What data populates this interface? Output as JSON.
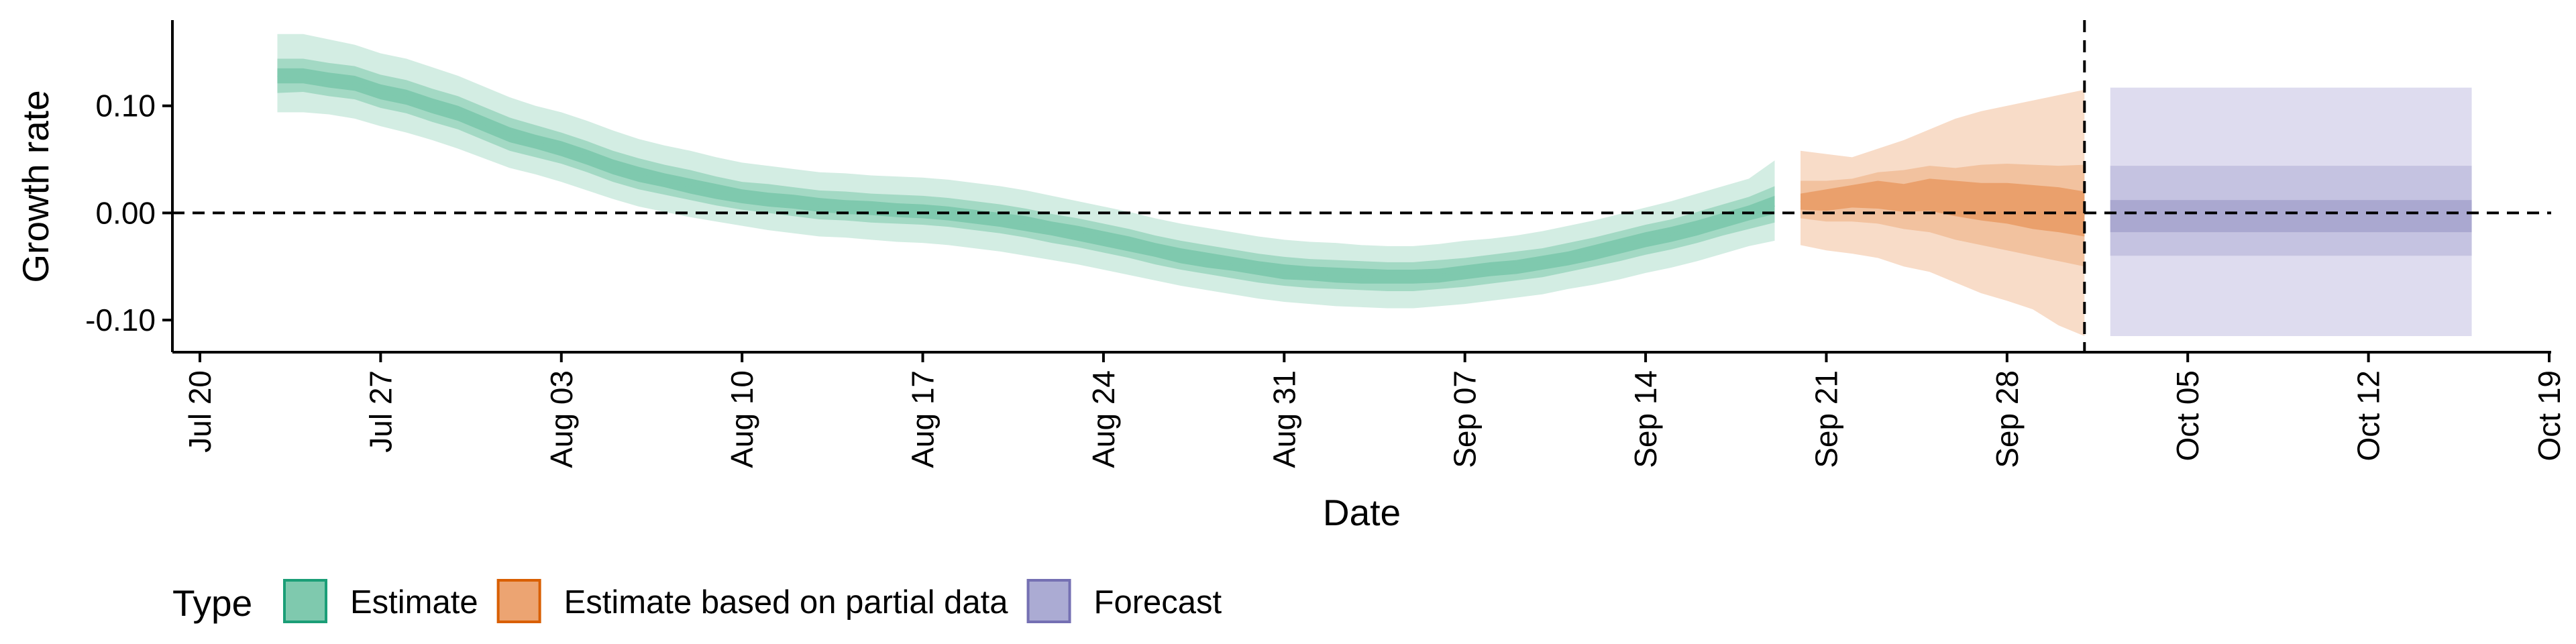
{
  "chart_data": {
    "type": "area",
    "xlabel": "Date",
    "ylabel": "Growth rate",
    "x_axis": {
      "kind": "date",
      "range": [
        "2020-07-20",
        "2020-10-19"
      ],
      "ticks": [
        {
          "date": "2020-07-20",
          "label": "Jul 20"
        },
        {
          "date": "2020-07-27",
          "label": "Jul 27"
        },
        {
          "date": "2020-08-03",
          "label": "Aug 03"
        },
        {
          "date": "2020-08-10",
          "label": "Aug 10"
        },
        {
          "date": "2020-08-17",
          "label": "Aug 17"
        },
        {
          "date": "2020-08-24",
          "label": "Aug 24"
        },
        {
          "date": "2020-08-31",
          "label": "Aug 31"
        },
        {
          "date": "2020-09-07",
          "label": "Sep 07"
        },
        {
          "date": "2020-09-14",
          "label": "Sep 14"
        },
        {
          "date": "2020-09-21",
          "label": "Sep 21"
        },
        {
          "date": "2020-09-28",
          "label": "Sep 28"
        },
        {
          "date": "2020-10-05",
          "label": "Oct 05"
        },
        {
          "date": "2020-10-12",
          "label": "Oct 12"
        },
        {
          "date": "2020-10-19",
          "label": "Oct 19"
        }
      ]
    },
    "y_axis": {
      "range": [
        -0.13,
        0.18
      ],
      "ticks": [
        {
          "value": 0.1,
          "label": "0.10"
        },
        {
          "value": 0.0,
          "label": "0.00"
        },
        {
          "value": -0.1,
          "label": "-0.10"
        }
      ]
    },
    "reference_lines": {
      "horizontal_y": 0,
      "vertical_date": "2020-10-01"
    },
    "grid": false,
    "legend": {
      "title": "Type",
      "position": "bottom-left",
      "items": [
        {
          "key": "estimate",
          "label": "Estimate",
          "fill": "#7fc9ae",
          "border": "#1b9e77"
        },
        {
          "key": "partial",
          "label": "Estimate based on partial data",
          "fill": "#eca472",
          "border": "#d95f02"
        },
        {
          "key": "forecast",
          "label": "Forecast",
          "fill": "#ababd3",
          "border": "#7570b3"
        }
      ]
    },
    "series": [
      {
        "type_key": "estimate",
        "colors": {
          "outer": "#d3ede3",
          "mid": "#a3d9c4",
          "inner": "#7fc9ae"
        },
        "x": [
          "2020-07-23",
          "2020-07-24",
          "2020-07-25",
          "2020-07-26",
          "2020-07-27",
          "2020-07-28",
          "2020-07-29",
          "2020-07-30",
          "2020-07-31",
          "2020-08-01",
          "2020-08-02",
          "2020-08-03",
          "2020-08-04",
          "2020-08-05",
          "2020-08-06",
          "2020-08-07",
          "2020-08-08",
          "2020-08-09",
          "2020-08-10",
          "2020-08-11",
          "2020-08-12",
          "2020-08-13",
          "2020-08-14",
          "2020-08-15",
          "2020-08-16",
          "2020-08-17",
          "2020-08-18",
          "2020-08-19",
          "2020-08-20",
          "2020-08-21",
          "2020-08-22",
          "2020-08-23",
          "2020-08-24",
          "2020-08-25",
          "2020-08-26",
          "2020-08-27",
          "2020-08-28",
          "2020-08-29",
          "2020-08-30",
          "2020-08-31",
          "2020-09-01",
          "2020-09-02",
          "2020-09-03",
          "2020-09-04",
          "2020-09-05",
          "2020-09-06",
          "2020-09-07",
          "2020-09-08",
          "2020-09-09",
          "2020-09-10",
          "2020-09-11",
          "2020-09-12",
          "2020-09-13",
          "2020-09-14",
          "2020-09-15",
          "2020-09-16",
          "2020-09-17",
          "2020-09-18",
          "2020-09-19"
        ],
        "median": [
          0.127,
          0.128,
          0.123,
          0.121,
          0.113,
          0.108,
          0.1,
          0.093,
          0.083,
          0.073,
          0.066,
          0.06,
          0.052,
          0.043,
          0.036,
          0.03,
          0.025,
          0.02,
          0.015,
          0.013,
          0.01,
          0.007,
          0.006,
          0.004,
          0.003,
          0.002,
          0.0,
          -0.003,
          -0.006,
          -0.01,
          -0.015,
          -0.019,
          -0.024,
          -0.029,
          -0.035,
          -0.04,
          -0.044,
          -0.048,
          -0.052,
          -0.055,
          -0.057,
          -0.058,
          -0.059,
          -0.06,
          -0.06,
          -0.058,
          -0.055,
          -0.053,
          -0.05,
          -0.047,
          -0.042,
          -0.037,
          -0.031,
          -0.025,
          -0.02,
          -0.014,
          -0.007,
          0.0,
          0.007
        ],
        "lower_outer": [
          0.094,
          0.094,
          0.092,
          0.088,
          0.081,
          0.075,
          0.068,
          0.06,
          0.051,
          0.042,
          0.036,
          0.029,
          0.021,
          0.013,
          0.006,
          0.001,
          -0.004,
          -0.008,
          -0.012,
          -0.016,
          -0.019,
          -0.022,
          -0.023,
          -0.025,
          -0.027,
          -0.028,
          -0.03,
          -0.033,
          -0.036,
          -0.04,
          -0.044,
          -0.048,
          -0.053,
          -0.058,
          -0.063,
          -0.068,
          -0.072,
          -0.076,
          -0.08,
          -0.083,
          -0.085,
          -0.087,
          -0.088,
          -0.089,
          -0.089,
          -0.087,
          -0.085,
          -0.082,
          -0.079,
          -0.076,
          -0.071,
          -0.067,
          -0.062,
          -0.056,
          -0.051,
          -0.045,
          -0.038,
          -0.031,
          -0.026
        ],
        "upper_outer": [
          0.167,
          0.167,
          0.162,
          0.157,
          0.149,
          0.144,
          0.136,
          0.128,
          0.118,
          0.108,
          0.1,
          0.094,
          0.086,
          0.077,
          0.069,
          0.063,
          0.058,
          0.052,
          0.047,
          0.044,
          0.041,
          0.038,
          0.037,
          0.035,
          0.034,
          0.033,
          0.031,
          0.028,
          0.025,
          0.021,
          0.016,
          0.011,
          0.006,
          0.001,
          -0.005,
          -0.01,
          -0.014,
          -0.018,
          -0.022,
          -0.025,
          -0.027,
          -0.028,
          -0.03,
          -0.031,
          -0.031,
          -0.029,
          -0.026,
          -0.024,
          -0.021,
          -0.017,
          -0.012,
          -0.007,
          -0.001,
          0.005,
          0.011,
          0.018,
          0.025,
          0.032,
          0.049
        ],
        "lower_mid": [
          0.112,
          0.113,
          0.109,
          0.106,
          0.098,
          0.093,
          0.085,
          0.078,
          0.068,
          0.058,
          0.052,
          0.046,
          0.038,
          0.029,
          0.022,
          0.017,
          0.012,
          0.007,
          0.003,
          0.0,
          -0.003,
          -0.006,
          -0.007,
          -0.009,
          -0.01,
          -0.011,
          -0.013,
          -0.016,
          -0.019,
          -0.023,
          -0.028,
          -0.032,
          -0.037,
          -0.042,
          -0.048,
          -0.053,
          -0.057,
          -0.061,
          -0.065,
          -0.068,
          -0.07,
          -0.071,
          -0.072,
          -0.073,
          -0.073,
          -0.071,
          -0.069,
          -0.066,
          -0.063,
          -0.06,
          -0.055,
          -0.05,
          -0.045,
          -0.039,
          -0.034,
          -0.028,
          -0.021,
          -0.015,
          -0.009
        ],
        "upper_mid": [
          0.144,
          0.144,
          0.14,
          0.137,
          0.129,
          0.124,
          0.116,
          0.109,
          0.099,
          0.089,
          0.082,
          0.075,
          0.067,
          0.058,
          0.051,
          0.045,
          0.04,
          0.034,
          0.029,
          0.027,
          0.024,
          0.021,
          0.02,
          0.018,
          0.017,
          0.016,
          0.014,
          0.011,
          0.008,
          0.004,
          -0.001,
          -0.005,
          -0.01,
          -0.015,
          -0.021,
          -0.026,
          -0.03,
          -0.034,
          -0.038,
          -0.041,
          -0.043,
          -0.044,
          -0.045,
          -0.046,
          -0.046,
          -0.044,
          -0.042,
          -0.039,
          -0.036,
          -0.033,
          -0.028,
          -0.023,
          -0.017,
          -0.011,
          -0.006,
          0.001,
          0.008,
          0.015,
          0.025
        ],
        "lower_inner": [
          0.121,
          0.121,
          0.117,
          0.114,
          0.106,
          0.101,
          0.093,
          0.086,
          0.076,
          0.066,
          0.06,
          0.053,
          0.045,
          0.036,
          0.029,
          0.024,
          0.018,
          0.013,
          0.009,
          0.006,
          0.004,
          0.001,
          -0.001,
          -0.002,
          -0.004,
          -0.005,
          -0.007,
          -0.01,
          -0.013,
          -0.017,
          -0.021,
          -0.026,
          -0.031,
          -0.036,
          -0.041,
          -0.047,
          -0.051,
          -0.054,
          -0.058,
          -0.062,
          -0.063,
          -0.065,
          -0.066,
          -0.066,
          -0.066,
          -0.065,
          -0.062,
          -0.059,
          -0.057,
          -0.053,
          -0.049,
          -0.044,
          -0.038,
          -0.032,
          -0.027,
          -0.021,
          -0.014,
          -0.007,
          -0.001
        ],
        "upper_inner": [
          0.135,
          0.135,
          0.131,
          0.128,
          0.12,
          0.115,
          0.107,
          0.1,
          0.09,
          0.08,
          0.073,
          0.067,
          0.059,
          0.05,
          0.043,
          0.037,
          0.032,
          0.027,
          0.022,
          0.019,
          0.017,
          0.014,
          0.012,
          0.011,
          0.009,
          0.008,
          0.006,
          0.003,
          0.0,
          -0.003,
          -0.008,
          -0.012,
          -0.017,
          -0.022,
          -0.028,
          -0.033,
          -0.037,
          -0.041,
          -0.045,
          -0.048,
          -0.05,
          -0.051,
          -0.052,
          -0.053,
          -0.053,
          -0.052,
          -0.049,
          -0.046,
          -0.044,
          -0.04,
          -0.036,
          -0.03,
          -0.024,
          -0.018,
          -0.013,
          -0.007,
          0.0,
          0.007,
          0.016
        ]
      },
      {
        "type_key": "partial",
        "colors": {
          "outer": "#f8dcc8",
          "mid": "#f2c29f",
          "inner": "#eaa06c"
        },
        "x": [
          "2020-09-20",
          "2020-09-21",
          "2020-09-22",
          "2020-09-23",
          "2020-09-24",
          "2020-09-25",
          "2020-09-26",
          "2020-09-27",
          "2020-09-28",
          "2020-09-29",
          "2020-09-30",
          "2020-10-01"
        ],
        "median": [
          0.01,
          0.012,
          0.018,
          0.02,
          0.015,
          0.02,
          0.016,
          0.012,
          0.01,
          0.005,
          0.003,
          -0.003
        ],
        "lower_outer": [
          -0.03,
          -0.035,
          -0.038,
          -0.042,
          -0.05,
          -0.055,
          -0.065,
          -0.075,
          -0.082,
          -0.09,
          -0.105,
          -0.115
        ],
        "upper_outer": [
          0.058,
          0.055,
          0.052,
          0.06,
          0.068,
          0.078,
          0.088,
          0.095,
          0.1,
          0.105,
          0.11,
          0.115
        ],
        "lower_mid": [
          -0.005,
          -0.008,
          -0.008,
          -0.01,
          -0.015,
          -0.018,
          -0.025,
          -0.03,
          -0.035,
          -0.04,
          -0.045,
          -0.05
        ],
        "upper_mid": [
          0.03,
          0.03,
          0.032,
          0.038,
          0.04,
          0.044,
          0.042,
          0.045,
          0.046,
          0.045,
          0.044,
          0.045
        ],
        "lower_inner": [
          0.003,
          0.002,
          0.005,
          0.004,
          0.001,
          0.002,
          -0.003,
          -0.007,
          -0.01,
          -0.015,
          -0.018,
          -0.022
        ],
        "upper_inner": [
          0.018,
          0.022,
          0.026,
          0.03,
          0.027,
          0.032,
          0.03,
          0.028,
          0.028,
          0.026,
          0.024,
          0.02
        ]
      },
      {
        "type_key": "forecast",
        "colors": {
          "outer": "#dedcef",
          "mid": "#c5c3e1",
          "inner": "#aaa8d0"
        },
        "x": [
          "2020-10-02",
          "2020-10-16"
        ],
        "median": [
          0.0,
          0.0
        ],
        "lower_outer": [
          -0.115,
          -0.115
        ],
        "upper_outer": [
          0.117,
          0.117
        ],
        "lower_mid": [
          -0.04,
          -0.04
        ],
        "upper_mid": [
          0.044,
          0.044
        ],
        "lower_inner": [
          -0.018,
          -0.018
        ],
        "upper_inner": [
          0.012,
          0.012
        ]
      }
    ]
  }
}
